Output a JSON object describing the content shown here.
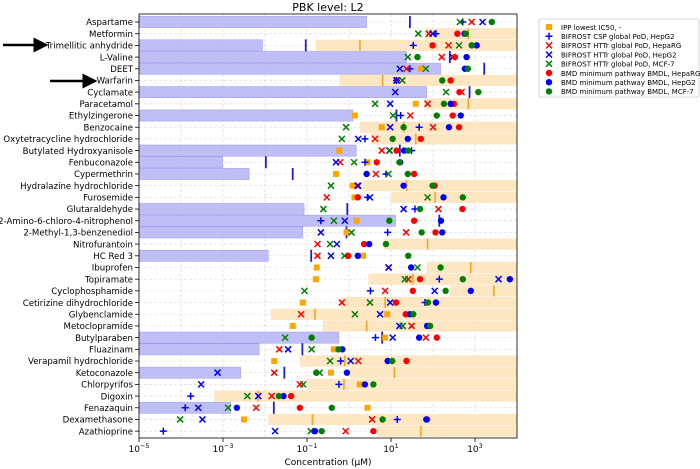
{
  "chart_data": {
    "type": "scatter",
    "title": "PBK level: L2",
    "xlabel": "Concentration (µM)",
    "xscale": "log",
    "units_note": "values are log10(µM)",
    "xlim_log10": [
      -5,
      4
    ],
    "x_ticks": [
      {
        "base": "10",
        "exp": "−5",
        "value": -5
      },
      {
        "base": "10",
        "exp": "−3",
        "value": -3
      },
      {
        "base": "10",
        "exp": "−1",
        "value": -1
      },
      {
        "base": "10",
        "exp": "1",
        "value": 1
      },
      {
        "base": "10",
        "exp": "3",
        "value": 3
      }
    ],
    "grid": true,
    "legend_position": "right-top",
    "highlighted": [
      "Trimellitic anhydride",
      "Warfarin"
    ],
    "colors": {
      "bar": "#b4b4f5",
      "band": "#fde7c2",
      "orange_line": "#f5a623",
      "blue_line": "#1f1fd0",
      "ipp": "#ffa500",
      "csp": "#0000ff",
      "httr_heparg": "#ff0000",
      "httr_hepg2": "#0000ff",
      "httr_mcf7": "#008000",
      "bmd_heparg": "#ff0000",
      "bmd_hepg2": "#0000ff",
      "bmd_mcf7": "#008000"
    },
    "legend": [
      {
        "key": "ipp",
        "label": "IPP lowest IC50, -",
        "marker": "square"
      },
      {
        "key": "csp",
        "label": "BIFROST CSP global PoD, HepG2",
        "marker": "plus"
      },
      {
        "key": "httr_heparg",
        "label": "BIFROST HTTr global PoD, HepaRG",
        "marker": "x"
      },
      {
        "key": "httr_hepg2",
        "label": "BIFROST HTTr global PoD, HepG2",
        "marker": "x"
      },
      {
        "key": "httr_mcf7",
        "label": "BIFROST HTTr global PoD, MCF-7",
        "marker": "x"
      },
      {
        "key": "bmd_heparg",
        "label": "BMD minimum pathway BMDL, HepaRG",
        "marker": "circle"
      },
      {
        "key": "bmd_hepg2",
        "label": "BMD minimum pathway BMDL, HepG2",
        "marker": "circle"
      },
      {
        "key": "bmd_mcf7",
        "label": "BMD minimum pathway BMDL, MCF-7",
        "marker": "circle"
      }
    ],
    "rows": [
      {
        "name": "Aspartame",
        "bar": 0.42,
        "blue_line": 1.45,
        "httr_mcf7": 2.64,
        "csp": 2.71,
        "httr_heparg": 2.92,
        "httr_hepg2": 3.18,
        "bmd_mcf7": 3.4
      },
      {
        "name": "Metformin",
        "band": 1.81,
        "orange_line": 2.84,
        "httr_mcf7": 1.65,
        "httr_heparg": 1.9,
        "httr_hepg2": 1.99,
        "csp": 2.07,
        "bmd_heparg": 2.58,
        "bmd_hepg2": 2.75,
        "bmd_mcf7": 2.78
      },
      {
        "name": "Trimellitic anhydride",
        "bar": -2.06,
        "blue_line": -1.03,
        "band": -0.79,
        "orange_line": 0.26,
        "csp": 1.53,
        "bmd_heparg": 1.99,
        "httr_heparg": 2.37,
        "httr_mcf7": 2.62,
        "bmd_mcf7": 2.92,
        "bmd_hepg2": 3.04
      },
      {
        "name": "L-Valine",
        "bar": 1.37,
        "httr_mcf7": 1.4,
        "bmd_mcf7": 1.63,
        "httr_heparg": 2.21,
        "blue_line": 2.4,
        "httr_hepg2": 2.47,
        "bmd_heparg": 2.52,
        "bmd_hepg2": 2.8
      },
      {
        "name": "DEET",
        "bar": 2.18,
        "httr_hepg2": 1.21,
        "httr_heparg": 1.37,
        "csp": 1.45,
        "ipp": 1.71,
        "httr_mcf7": 1.83,
        "bmd_hepg2": 2.76,
        "bmd_mcf7": 2.83,
        "blue_line": 3.22
      },
      {
        "name": "Warfarin",
        "band": -0.23,
        "orange_line": 0.8,
        "httr_hepg2": 1.13,
        "csp": 1.13,
        "httr_heparg": 1.15,
        "httr_mcf7": 1.27,
        "bmd_mcf7": 2.22,
        "bmd_heparg": 2.42
      },
      {
        "name": "Cyclamate",
        "bar": 1.85,
        "httr_hepg2": 1.1,
        "httr_mcf7": 2.31,
        "bmd_heparg": 2.63,
        "httr_heparg": 2.68,
        "blue_line": 2.87,
        "bmd_mcf7": 3.08
      },
      {
        "name": "Paracetamol",
        "band": 1.81,
        "orange_line": 2.84,
        "httr_mcf7": 0.62,
        "httr_hepg2": 0.98,
        "ipp": 1.59,
        "httr_heparg": 1.87,
        "bmd_mcf7": 2.26,
        "bmd_hepg2": 2.42,
        "bmd_heparg": 2.5
      },
      {
        "name": "Ethylzingerone",
        "bar": 0.09,
        "ipp": 0.14,
        "httr_mcf7": 1.05,
        "blue_line": 1.13,
        "csp": 1.23,
        "httr_heparg": 1.46,
        "bmd_mcf7": 2.09,
        "bmd_heparg": 2.47,
        "bmd_hepg2": 2.66
      },
      {
        "name": "Benzocaine",
        "band": 0.26,
        "orange_line": 1.31,
        "httr_mcf7": -0.07,
        "ipp": 0.78,
        "httr_hepg2": 0.98,
        "bmd_mcf7": 1.3,
        "csp": 1.67,
        "httr_heparg": 2.0,
        "bmd_hepg2": 2.38,
        "bmd_heparg": 2.62
      },
      {
        "name": "Oxytetracycline hydrochloride",
        "band": 0.52,
        "orange_line": 1.59,
        "httr_mcf7": -0.17,
        "httr_hepg2": 0.22,
        "csp": 0.38,
        "httr_heparg": 0.62,
        "bmd_mcf7": 1.04,
        "bmd_hepg2": 1.4,
        "bmd_heparg": 1.71
      },
      {
        "name": "Butylated Hydroxyanisole",
        "bar": 0.17,
        "blue_line": 1.21,
        "ipp": -0.23,
        "httr_heparg": 0.78,
        "httr_hepg2": 0.96,
        "httr_mcf7": 0.97,
        "bmd_heparg": 1.13,
        "bmd_hepg2": 1.31,
        "bmd_mcf7": 1.41,
        "csp": 1.49
      },
      {
        "name": "Fenbuconazole",
        "bar": -3.01,
        "blue_line": -1.98,
        "httr_hepg2": -0.31,
        "httr_heparg": -0.21,
        "httr_mcf7": 0.12,
        "csp": 0.38,
        "ipp": 0.44,
        "bmd_heparg": 0.66,
        "bmd_mcf7": 1.2,
        "bmd_hepg2": 1.22
      },
      {
        "name": "Cypermethrin",
        "bar": -2.38,
        "blue_line": -1.34,
        "ipp": -0.31,
        "bmd_hepg2": 0.42,
        "httr_heparg": 0.64,
        "csp": 0.88,
        "httr_mcf7": 0.94,
        "bmd_mcf7": 1.4,
        "bmd_heparg": 1.55
      },
      {
        "name": "Hydralazine hydrochloride",
        "band": 0.32,
        "orange_line": 1.37,
        "httr_mcf7": -0.43,
        "ipp": 0.09,
        "httr_heparg": 0.2,
        "httr_hepg2": 0.22,
        "bmd_hepg2": 1.3,
        "bmd_mcf7": 1.99,
        "bmd_heparg": 2.04
      },
      {
        "name": "Furosemide",
        "band": 1.0,
        "orange_line": 2.05,
        "httr_heparg": -0.53,
        "ipp": 0.13,
        "bmd_heparg": 0.21,
        "csp": 0.44,
        "httr_hepg2": 0.5,
        "httr_mcf7": 1.87,
        "bmd_hepg2": 2.25,
        "bmd_mcf7": 2.71
      },
      {
        "name": "Glutaraldehyde",
        "bar": -1.07,
        "blue_line": -0.04,
        "httr_mcf7": -0.61,
        "httr_hepg2": 1.3,
        "csp": 1.57,
        "bmd_mcf7": 1.69,
        "httr_heparg": 2.13,
        "bmd_heparg": 2.7
      },
      {
        "name": "2-Amino-6-chloro-4-nitrophenol",
        "bar": 1.11,
        "blue_line": 2.15,
        "csp": -0.67,
        "httr_mcf7": -0.36,
        "httr_hepg2": -0.1,
        "ipp": 0.18,
        "bmd_mcf7": 0.96,
        "bmd_heparg": 1.55,
        "bmd_hepg2": 2.19
      },
      {
        "name": "2-Methyl-1,3-benzenediol",
        "bar": -1.1,
        "blue_line": -0.06,
        "httr_hepg2": -0.67,
        "ipp": -0.06,
        "httr_mcf7": 0.06,
        "csp": 0.92,
        "httr_heparg": 1.36,
        "bmd_mcf7": 1.73,
        "bmd_heparg": 2.06,
        "bmd_hepg2": 2.22
      },
      {
        "name": "Nitrofurantoin",
        "band": 0.83,
        "orange_line": 1.87,
        "httr_heparg": -0.75,
        "httr_mcf7": -0.45,
        "httr_hepg2": -0.29,
        "bmd_heparg": 0.36,
        "bmd_hepg2": 0.48,
        "bmd_mcf7": 0.88
      },
      {
        "name": "HC Red 3",
        "bar": -1.92,
        "blue_line": -0.9,
        "httr_heparg": -0.75,
        "httr_hepg2": -0.43,
        "httr_mcf7": -0.11,
        "bmd_heparg": -0.02,
        "bmd_hepg2": 0.21,
        "ipp": 0.34,
        "bmd_mcf7": 1.41
      },
      {
        "name": "Ibuprofen",
        "band": 1.85,
        "orange_line": 2.9,
        "ipp": -0.77,
        "httr_hepg2": 0.94,
        "httr_heparg": 0.95,
        "bmd_hepg2": 1.48,
        "httr_mcf7": 1.63,
        "bmd_mcf7": 2.18
      },
      {
        "name": "Topiramate",
        "band": 0.46,
        "orange_line": 1.52,
        "ipp": -0.79,
        "httr_mcf7": 1.33,
        "httr_heparg": 1.41,
        "bmd_heparg": 1.69,
        "csp": 2.15,
        "bmd_mcf7": 2.71,
        "httr_hepg2": 3.56,
        "bmd_hepg2": 3.83
      },
      {
        "name": "Cyclophosphamide",
        "band": 2.4,
        "orange_line": 3.45,
        "httr_mcf7": -1.06,
        "csp": 0.51,
        "httr_heparg": 0.86,
        "bmd_heparg": 1.52,
        "httr_hepg2": 2.04,
        "bmd_mcf7": 2.3,
        "bmd_hepg2": 2.9
      },
      {
        "name": "Cetirizine dihydrochloride",
        "band": -0.2,
        "orange_line": 0.86,
        "ipp": -1.1,
        "httr_heparg": -0.17,
        "httr_mcf7": 0.5,
        "httr_hepg2": 0.98,
        "bmd_heparg": 1.12,
        "csp": 1.81,
        "bmd_mcf7": 1.88,
        "bmd_hepg2": 2.07
      },
      {
        "name": "Glybenclamide",
        "band": -1.86,
        "orange_line": -0.81,
        "httr_heparg": -1.14,
        "httr_mcf7": 0.14,
        "httr_hepg2": 0.74,
        "ipp": 0.91,
        "bmd_heparg": 1.35,
        "bmd_hepg2": 1.45,
        "bmd_mcf7": 1.53
      },
      {
        "name": "Metoclopramide",
        "band": -0.63,
        "orange_line": 0.42,
        "ipp": -1.34,
        "httr_hepg2": 1.2,
        "httr_mcf7": 1.28,
        "httr_heparg": 1.49,
        "bmd_hepg2": 1.86,
        "bmd_heparg": 1.9,
        "bmd_mcf7": 1.93
      },
      {
        "name": "Butylparaben",
        "bar": -0.24,
        "blue_line": 0.79,
        "httr_mcf7": -1.52,
        "bmd_mcf7": -0.89,
        "csp": 0.63,
        "ipp": 0.86,
        "httr_hepg2": 1.04,
        "bmd_hepg2": 1.67,
        "httr_heparg": 1.83,
        "bmd_heparg": 2.09
      },
      {
        "name": "Fluazinam",
        "bar": -2.14,
        "blue_line": -1.11,
        "httr_heparg": -1.66,
        "httr_hepg2": -1.45,
        "httr_mcf7": -0.89,
        "ipp": -0.36,
        "bmd_mcf7": -0.25,
        "bmd_hepg2": -0.16
      },
      {
        "name": "Verapamil hydrochloride",
        "band": -1.17,
        "orange_line": -0.1,
        "ipp": -1.78,
        "httr_mcf7": -0.45,
        "csp": -0.2,
        "httr_hepg2": 0.04,
        "httr_heparg": 0.22,
        "bmd_hepg2": 0.92,
        "bmd_mcf7": 1.03,
        "bmd_heparg": 1.37
      },
      {
        "name": "Ketoconazole",
        "bar": -2.58,
        "blue_line": -1.54,
        "band": 0.02,
        "orange_line": 1.08,
        "httr_hepg2": -3.13,
        "httr_heparg": -1.78,
        "bmd_mcf7": -0.78,
        "httr_mcf7": -0.7,
        "ipp": -0.43,
        "bmd_hepg2": -0.05
      },
      {
        "name": "Chlorpyrifos",
        "band": -1.01,
        "orange_line": -0.12,
        "httr_hepg2": -3.52,
        "httr_heparg": -1.17,
        "httr_mcf7": -1.09,
        "csp": -0.24,
        "ipp": 0.26,
        "bmd_hepg2": 0.38,
        "bmd_mcf7": 0.58
      },
      {
        "name": "Digoxin",
        "band": -3.21,
        "orange_line": -2.17,
        "csp": -3.77,
        "httr_mcf7": -2.42,
        "httr_hepg2": -2.16,
        "httr_heparg": -1.84,
        "bmd_mcf7": -1.67,
        "bmd_hepg2": -1.56,
        "bmd_heparg": -1.38
      },
      {
        "name": "Fenazaquin",
        "bar": -2.82,
        "blue_line": -1.79,
        "csp": -3.9,
        "httr_hepg2": -3.59,
        "httr_mcf7": -2.88,
        "bmd_hepg2": -2.67,
        "httr_heparg": -2.21,
        "bmd_heparg": -1.17,
        "bmd_mcf7": -0.41,
        "ipp": 0.44
      },
      {
        "name": "Dexamethasone",
        "band": -1.92,
        "orange_line": -0.87,
        "httr_mcf7": -4.02,
        "httr_hepg2": -3.49,
        "ipp": -2.5,
        "httr_heparg": 0.55,
        "bmd_mcf7": 0.8,
        "csp": 1.15,
        "bmd_hepg2": 1.84,
        "bmd_heparg": 1.86
      },
      {
        "name": "Azathioprine",
        "band": 0.66,
        "orange_line": 1.71,
        "csp": -4.42,
        "httr_hepg2": -1.76,
        "httr_mcf7": -0.91,
        "bmd_hepg2": -0.81,
        "bmd_mcf7": -0.65,
        "httr_heparg": -0.08,
        "bmd_heparg": 0.58
      }
    ]
  }
}
